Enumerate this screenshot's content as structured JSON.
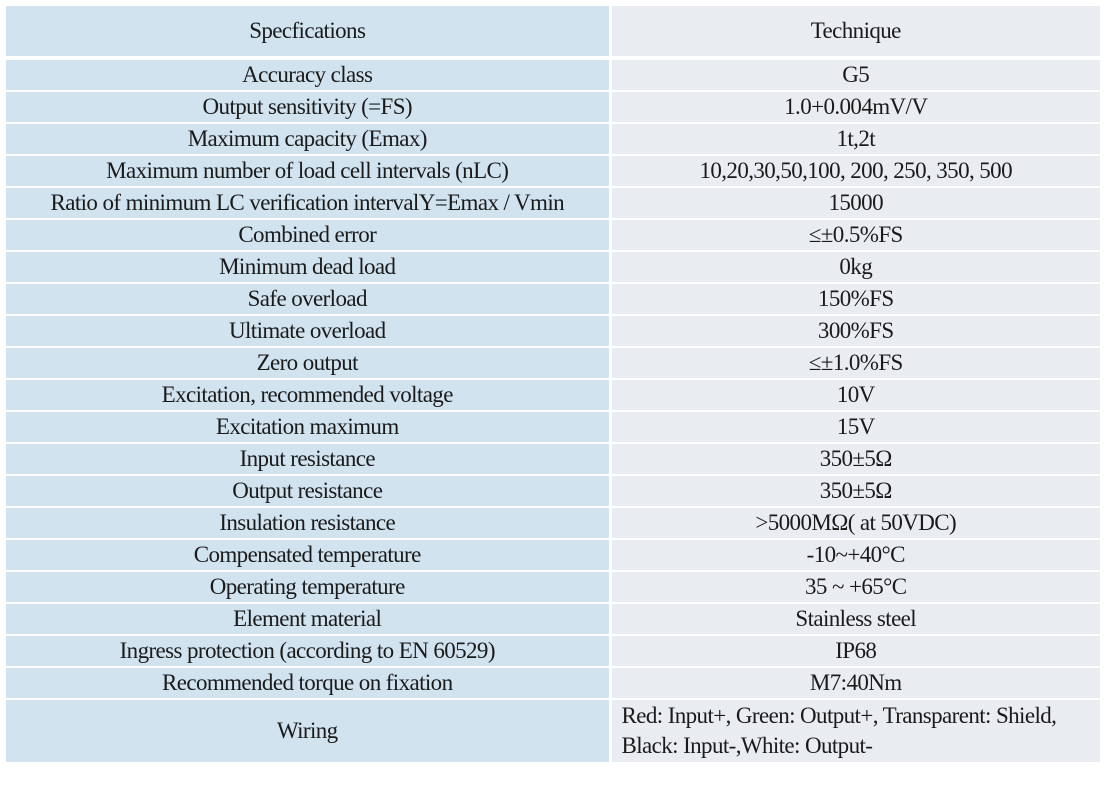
{
  "table": {
    "header": {
      "specifications": "Specfications",
      "technique": "Technique"
    },
    "rows": [
      {
        "spec": "Accuracy class",
        "value": "G5"
      },
      {
        "spec": "Output sensitivity (=FS)",
        "value": "1.0+0.004mV/V"
      },
      {
        "spec": "Maximum capacity (Emax)",
        "value": "1t,2t"
      },
      {
        "spec": "Maximum number of load cell intervals (nLC)",
        "value": "10,20,30,50,100, 200, 250, 350, 500"
      },
      {
        "spec": "Ratio of minimum LC verification intervalY=Emax / Vmin",
        "value": "15000"
      },
      {
        "spec": "Combined error",
        "value": "≤±0.5%FS"
      },
      {
        "spec": "Minimum dead load",
        "value": "0kg"
      },
      {
        "spec": "Safe overload",
        "value": "150%FS"
      },
      {
        "spec": "Ultimate overload",
        "value": "300%FS"
      },
      {
        "spec": "Zero output",
        "value": "≤±1.0%FS"
      },
      {
        "spec": "Excitation, recommended voltage",
        "value": "10V"
      },
      {
        "spec": "Excitation maximum",
        "value": "15V"
      },
      {
        "spec": "Input resistance",
        "value": "350±5Ω"
      },
      {
        "spec": "Output resistance",
        "value": "350±5Ω"
      },
      {
        "spec": "Insulation resistance",
        "value": ">5000MΩ( at 50VDC)"
      },
      {
        "spec": "Compensated temperature",
        "value": "-10~+40°C"
      },
      {
        "spec": "Operating temperature",
        "value": "35 ~ +65°C"
      },
      {
        "spec": "Element material",
        "value": "Stainless steel"
      },
      {
        "spec": "Ingress protection (according to EN 60529)",
        "value": "IP68"
      },
      {
        "spec": "Recommended torque on fixation",
        "value": "M7:40Nm"
      }
    ],
    "wiring": {
      "spec": "Wiring",
      "line1": "Red: Input+, Green: Output+, Transparent: Shield,",
      "line2": "Black: Input-,White: Output-"
    }
  },
  "colors": {
    "left_column_bg": "#d2e3f0",
    "right_column_bg": "#e9edf2",
    "text": "#1a1a1a",
    "divider": "#ffffff"
  }
}
